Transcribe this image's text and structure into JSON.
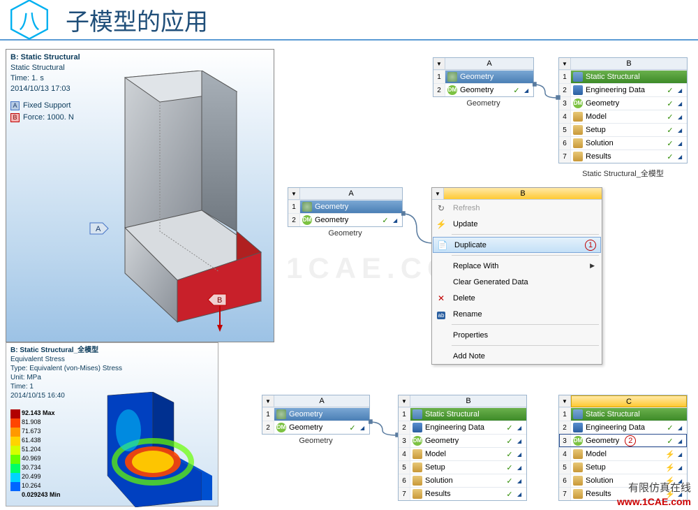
{
  "title": {
    "number": "八",
    "text": "子模型的应用"
  },
  "viewport1": {
    "header": "B: Static Structural",
    "line1": "Static Structural",
    "line2": "Time: 1. s",
    "line3": "2014/10/13 17:03",
    "bc": [
      {
        "tag": "A",
        "label": "Fixed Support",
        "color": "#4472c4"
      },
      {
        "tag": "B",
        "label": "Force: 1000. N",
        "color": "#c00000"
      }
    ]
  },
  "viewport2": {
    "header": "B: Static Structural_全模型",
    "line1": "Equivalent Stress",
    "line2": "Type: Equivalent (von-Mises) Stress",
    "line3": "Unit: MPa",
    "line4": "Time: 1",
    "line5": "2014/10/15 16:40",
    "colorbar": {
      "colors": [
        "#b10000",
        "#ff4500",
        "#ff9900",
        "#ffd400",
        "#d4ff00",
        "#66ff00",
        "#00ff66",
        "#00d4ff",
        "#0066ff"
      ],
      "labels": [
        "92.143 Max",
        "81.908",
        "71.673",
        "61.438",
        "51.204",
        "40.969",
        "30.734",
        "20.499",
        "10.264",
        "0.029243 Min"
      ]
    }
  },
  "cells": {
    "geom_top": {
      "col": "A",
      "caption": "Geometry",
      "rows": [
        {
          "n": "1",
          "type": "title",
          "icon": "ic-geom",
          "label": "Geometry"
        },
        {
          "n": "2",
          "icon": "ic-dm",
          "iconText": "DM",
          "label": "Geometry",
          "status": "✓",
          "menu": "◢"
        }
      ]
    },
    "struct_top": {
      "col": "B",
      "caption": "Static Structural_全模型",
      "rows": [
        {
          "n": "1",
          "type": "title-green",
          "icon": "ic-ss",
          "label": "Static Structural"
        },
        {
          "n": "2",
          "icon": "ic-eng",
          "label": "Engineering Data",
          "status": "✓",
          "menu": "◢"
        },
        {
          "n": "3",
          "icon": "ic-dm",
          "iconText": "DM",
          "label": "Geometry",
          "status": "✓",
          "menu": "◢"
        },
        {
          "n": "4",
          "icon": "ic-model",
          "label": "Model",
          "status": "✓",
          "menu": "◢"
        },
        {
          "n": "5",
          "icon": "ic-setup",
          "label": "Setup",
          "status": "✓",
          "menu": "◢"
        },
        {
          "n": "6",
          "icon": "ic-sol",
          "label": "Solution",
          "status": "✓",
          "menu": "◢"
        },
        {
          "n": "7",
          "icon": "ic-res",
          "label": "Results",
          "status": "✓",
          "menu": "◢"
        }
      ]
    },
    "geom_mid": {
      "col": "A",
      "caption": "Geometry",
      "rows": [
        {
          "n": "1",
          "type": "title",
          "icon": "ic-geom",
          "label": "Geometry"
        },
        {
          "n": "2",
          "icon": "ic-dm",
          "iconText": "DM",
          "label": "Geometry",
          "status": "✓",
          "menu": "◢"
        }
      ]
    },
    "geom_bot": {
      "col": "A",
      "caption": "Geometry",
      "rows": [
        {
          "n": "1",
          "type": "title",
          "icon": "ic-geom",
          "label": "Geometry"
        },
        {
          "n": "2",
          "icon": "ic-dm",
          "iconText": "DM",
          "label": "Geometry",
          "status": "✓",
          "menu": "◢"
        }
      ]
    },
    "struct_botB": {
      "col": "B",
      "rows": [
        {
          "n": "1",
          "type": "title-green",
          "icon": "ic-ss",
          "label": "Static Structural"
        },
        {
          "n": "2",
          "icon": "ic-eng",
          "label": "Engineering Data",
          "status": "✓",
          "menu": "◢"
        },
        {
          "n": "3",
          "icon": "ic-dm",
          "iconText": "DM",
          "label": "Geometry",
          "status": "✓",
          "menu": "◢"
        },
        {
          "n": "4",
          "icon": "ic-model",
          "label": "Model",
          "status": "✓",
          "menu": "◢"
        },
        {
          "n": "5",
          "icon": "ic-setup",
          "label": "Setup",
          "status": "✓",
          "menu": "◢"
        },
        {
          "n": "6",
          "icon": "ic-sol",
          "label": "Solution",
          "status": "✓",
          "menu": "◢"
        },
        {
          "n": "7",
          "icon": "ic-res",
          "label": "Results",
          "status": "✓",
          "menu": "◢"
        }
      ]
    },
    "struct_botC": {
      "col": "C",
      "rows": [
        {
          "n": "1",
          "type": "title-green",
          "icon": "ic-ss",
          "label": "Static Structural"
        },
        {
          "n": "2",
          "icon": "ic-eng",
          "label": "Engineering Data",
          "status": "✓",
          "menu": "◢"
        },
        {
          "n": "3",
          "icon": "ic-dm",
          "iconText": "DM",
          "label": "Geometry",
          "circle": "②",
          "status": "✓",
          "menu": "◢",
          "highlight": true
        },
        {
          "n": "4",
          "icon": "ic-model",
          "label": "Model",
          "status": "⚡",
          "menu": "◢"
        },
        {
          "n": "5",
          "icon": "ic-setup",
          "label": "Setup",
          "status": "⚡",
          "menu": "◢"
        },
        {
          "n": "6",
          "icon": "ic-sol",
          "label": "Solution",
          "status": "⚡",
          "menu": "◢"
        },
        {
          "n": "7",
          "icon": "ic-res",
          "label": "Results",
          "status": "⚡",
          "menu": "◢"
        }
      ]
    }
  },
  "ctx": {
    "col": "B",
    "items": [
      {
        "icon": "↻",
        "label": "Refresh",
        "disabled": true
      },
      {
        "icon": "⚡",
        "label": "Update"
      },
      {
        "sep": true
      },
      {
        "icon": "📄",
        "label": "Duplicate",
        "highlight": true,
        "circle": "①"
      },
      {
        "sep": true
      },
      {
        "label": "Replace With",
        "arrow": "▶"
      },
      {
        "label": "Clear Generated Data"
      },
      {
        "icon": "✕",
        "iconColor": "#c00000",
        "label": "Delete"
      },
      {
        "icon": "ab",
        "iconBg": "#2a5fa0",
        "label": "Rename"
      },
      {
        "sep": true
      },
      {
        "label": "Properties"
      },
      {
        "sep": true
      },
      {
        "label": "Add Note"
      }
    ]
  },
  "watermark": "1CAE.COM",
  "footer_cn": "有限仿真在线",
  "footer_url": "www.1CAE.com"
}
